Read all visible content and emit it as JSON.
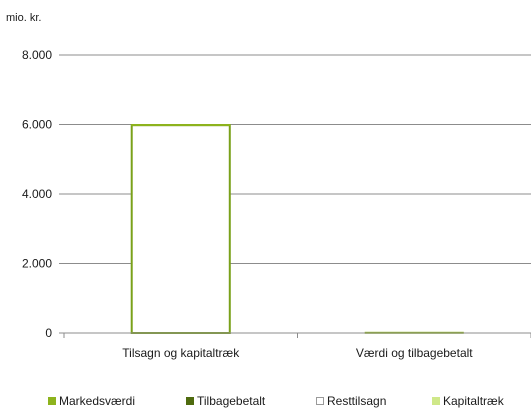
{
  "chart_data": {
    "type": "bar",
    "stacked": true,
    "unit_label": "mio. kr.",
    "categories": [
      "Tilsagn og kapitaltræk",
      "Værdi og tilbagebetalt"
    ],
    "yticks": [
      "0",
      "2.000",
      "4.000",
      "6.000",
      "8.000"
    ],
    "ylim": [
      0,
      8000
    ],
    "grid": true,
    "legend_position": "bottom",
    "series": [
      {
        "name": "Markedsværdi",
        "values": [
          0,
          20
        ],
        "color": "#8db31d"
      },
      {
        "name": "Tilbagebetalt",
        "values": [
          0,
          0
        ],
        "color": "#4f6b0f"
      },
      {
        "name": "Resttilsagn",
        "values": [
          5980,
          0
        ],
        "color": "#ffffff",
        "border": "#7aa11a"
      },
      {
        "name": "Kapitaltræk",
        "values": [
          20,
          0
        ],
        "color": "#cfe889"
      }
    ]
  }
}
